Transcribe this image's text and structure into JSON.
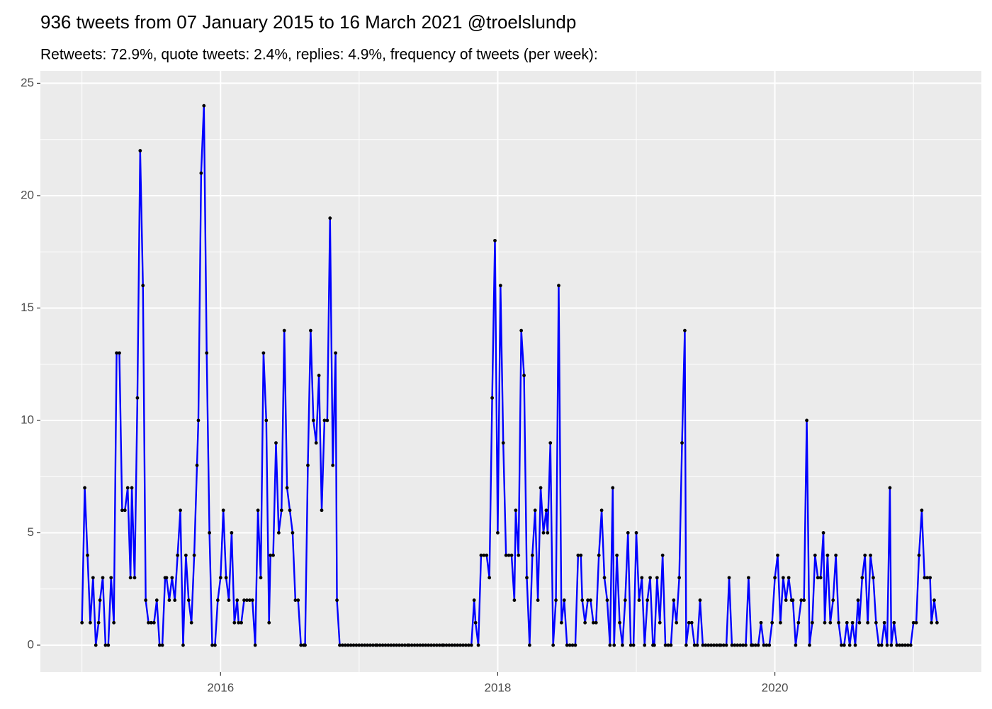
{
  "chart_data": {
    "type": "line",
    "title": "936 tweets from 07 January 2015 to 16 March 2021 @troelslundp",
    "subtitle": "Retweets: 72.9%, quote tweets: 2.4%, replies: 4.9%, frequency of tweets (per week):",
    "x": [
      2015,
      2015.02,
      2015.04,
      2015.06,
      2015.08,
      2015.1,
      2015.12,
      2015.13,
      2015.15,
      2015.17,
      2015.19,
      2015.21,
      2015.23,
      2015.25,
      2015.27,
      2015.29,
      2015.31,
      2015.33,
      2015.35,
      2015.36,
      2015.38,
      2015.4,
      2015.42,
      2015.44,
      2015.46,
      2015.48,
      2015.5,
      2015.52,
      2015.54,
      2015.56,
      2015.58,
      2015.6,
      2015.61,
      2015.63,
      2015.65,
      2015.67,
      2015.69,
      2015.71,
      2015.73,
      2015.75,
      2015.77,
      2015.79,
      2015.81,
      2015.83,
      2015.84,
      2015.86,
      2015.88,
      2015.9,
      2015.92,
      2015.94,
      2015.96,
      2015.98,
      2016,
      2016.02,
      2016.04,
      2016.06,
      2016.08,
      2016.1,
      2016.12,
      2016.13,
      2016.15,
      2016.17,
      2016.19,
      2016.21,
      2016.23,
      2016.25,
      2016.27,
      2016.29,
      2016.31,
      2016.33,
      2016.35,
      2016.36,
      2016.38,
      2016.4,
      2016.42,
      2016.44,
      2016.46,
      2016.48,
      2016.5,
      2016.52,
      2016.54,
      2016.56,
      2016.58,
      2016.6,
      2016.61,
      2016.63,
      2016.65,
      2016.67,
      2016.69,
      2016.71,
      2016.73,
      2016.75,
      2016.77,
      2016.79,
      2016.81,
      2016.83,
      2016.84,
      2016.86,
      2016.88,
      2016.9,
      2016.92,
      2016.94,
      2016.96,
      2016.98,
      2017,
      2017.02,
      2017.04,
      2017.06,
      2017.08,
      2017.1,
      2017.12,
      2017.13,
      2017.15,
      2017.17,
      2017.19,
      2017.21,
      2017.23,
      2017.25,
      2017.27,
      2017.29,
      2017.31,
      2017.33,
      2017.35,
      2017.36,
      2017.38,
      2017.4,
      2017.42,
      2017.44,
      2017.46,
      2017.48,
      2017.5,
      2017.52,
      2017.54,
      2017.56,
      2017.58,
      2017.6,
      2017.61,
      2017.63,
      2017.65,
      2017.67,
      2017.69,
      2017.71,
      2017.73,
      2017.75,
      2017.77,
      2017.79,
      2017.81,
      2017.83,
      2017.84,
      2017.86,
      2017.88,
      2017.9,
      2017.92,
      2017.94,
      2017.96,
      2017.98,
      2018,
      2018.02,
      2018.04,
      2018.06,
      2018.08,
      2018.1,
      2018.12,
      2018.13,
      2018.15,
      2018.17,
      2018.19,
      2018.21,
      2018.23,
      2018.25,
      2018.27,
      2018.29,
      2018.31,
      2018.33,
      2018.35,
      2018.36,
      2018.38,
      2018.4,
      2018.42,
      2018.44,
      2018.46,
      2018.48,
      2018.5,
      2018.52,
      2018.54,
      2018.56,
      2018.58,
      2018.6,
      2018.61,
      2018.63,
      2018.65,
      2018.67,
      2018.69,
      2018.71,
      2018.73,
      2018.75,
      2018.77,
      2018.79,
      2018.81,
      2018.83,
      2018.84,
      2018.86,
      2018.88,
      2018.9,
      2018.92,
      2018.94,
      2018.96,
      2018.98,
      2019,
      2019.02,
      2019.04,
      2019.06,
      2019.08,
      2019.1,
      2019.12,
      2019.13,
      2019.15,
      2019.17,
      2019.19,
      2019.21,
      2019.23,
      2019.25,
      2019.27,
      2019.29,
      2019.31,
      2019.33,
      2019.35,
      2019.36,
      2019.38,
      2019.4,
      2019.42,
      2019.44,
      2019.46,
      2019.48,
      2019.5,
      2019.52,
      2019.54,
      2019.56,
      2019.58,
      2019.6,
      2019.61,
      2019.63,
      2019.65,
      2019.67,
      2019.69,
      2019.71,
      2019.73,
      2019.75,
      2019.77,
      2019.79,
      2019.81,
      2019.83,
      2019.84,
      2019.86,
      2019.88,
      2019.9,
      2019.92,
      2019.94,
      2019.96,
      2019.98,
      2020,
      2020.02,
      2020.04,
      2020.06,
      2020.08,
      2020.1,
      2020.12,
      2020.13,
      2020.15,
      2020.17,
      2020.19,
      2020.21,
      2020.23,
      2020.25,
      2020.27,
      2020.29,
      2020.31,
      2020.33,
      2020.35,
      2020.36,
      2020.38,
      2020.4,
      2020.42,
      2020.44,
      2020.46,
      2020.48,
      2020.5,
      2020.52,
      2020.54,
      2020.56,
      2020.58,
      2020.6,
      2020.61,
      2020.63,
      2020.65,
      2020.67,
      2020.69,
      2020.71,
      2020.73,
      2020.75,
      2020.77,
      2020.79,
      2020.81,
      2020.83,
      2020.84,
      2020.86,
      2020.88,
      2020.9,
      2020.92,
      2020.94,
      2020.96,
      2020.98,
      2021,
      2021.02,
      2021.04,
      2021.06,
      2021.08,
      2021.1,
      2021.12,
      2021.13,
      2021.15,
      2021.17
    ],
    "values": [
      1,
      7,
      4,
      1,
      3,
      0,
      1,
      2,
      3,
      0,
      0,
      3,
      1,
      13,
      13,
      6,
      6,
      7,
      3,
      7,
      3,
      11,
      22,
      16,
      2,
      1,
      1,
      1,
      2,
      0,
      0,
      3,
      3,
      2,
      3,
      2,
      4,
      6,
      0,
      4,
      2,
      1,
      4,
      8,
      10,
      21,
      24,
      13,
      5,
      0,
      0,
      2,
      3,
      6,
      3,
      2,
      5,
      1,
      2,
      1,
      1,
      2,
      2,
      2,
      2,
      0,
      6,
      3,
      13,
      10,
      1,
      4,
      4,
      9,
      5,
      6,
      14,
      7,
      6,
      5,
      2,
      2,
      0,
      0,
      0,
      8,
      14,
      10,
      9,
      12,
      6,
      10,
      10,
      19,
      8,
      13,
      2,
      0,
      0,
      0,
      0,
      0,
      0,
      0,
      0,
      0,
      0,
      0,
      0,
      0,
      0,
      0,
      0,
      0,
      0,
      0,
      0,
      0,
      0,
      0,
      0,
      0,
      0,
      0,
      0,
      0,
      0,
      0,
      0,
      0,
      0,
      0,
      0,
      0,
      0,
      0,
      0,
      0,
      0,
      0,
      0,
      0,
      0,
      0,
      0,
      0,
      0,
      2,
      1,
      0,
      4,
      4,
      4,
      3,
      11,
      18,
      5,
      16,
      9,
      4,
      4,
      4,
      2,
      6,
      4,
      14,
      12,
      3,
      0,
      4,
      6,
      2,
      7,
      5,
      6,
      5,
      9,
      0,
      2,
      16,
      1,
      2,
      0,
      0,
      0,
      0,
      4,
      4,
      2,
      1,
      2,
      2,
      1,
      1,
      4,
      6,
      3,
      2,
      0,
      7,
      0,
      4,
      1,
      0,
      2,
      5,
      0,
      0,
      5,
      2,
      3,
      0,
      2,
      3,
      0,
      0,
      3,
      1,
      4,
      0,
      0,
      0,
      2,
      1,
      3,
      9,
      14,
      0,
      1,
      1,
      0,
      0,
      2,
      0,
      0,
      0,
      0,
      0,
      0,
      0,
      0,
      0,
      0,
      3,
      0,
      0,
      0,
      0,
      0,
      0,
      3,
      0,
      0,
      0,
      0,
      1,
      0,
      0,
      0,
      1,
      3,
      4,
      1,
      3,
      2,
      3,
      2,
      2,
      0,
      1,
      2,
      2,
      10,
      0,
      1,
      4,
      3,
      3,
      5,
      1,
      4,
      1,
      2,
      4,
      1,
      0,
      0,
      1,
      0,
      1,
      0,
      2,
      1,
      3,
      4,
      1,
      4,
      3,
      1,
      0,
      0,
      1,
      0,
      7,
      0,
      1,
      0,
      0,
      0,
      0,
      0,
      0,
      1,
      1,
      4,
      6,
      3,
      3,
      3,
      1,
      2,
      1
    ],
    "color": "#0000ff",
    "marker_color": "#000000",
    "xlim": [
      2014.7,
      2021.49
    ],
    "ylim": [
      -1.2,
      25.55
    ],
    "xticks": [
      2016,
      2018,
      2020
    ],
    "yticks": [
      0,
      5,
      10,
      15,
      20,
      25
    ],
    "grid": true
  }
}
